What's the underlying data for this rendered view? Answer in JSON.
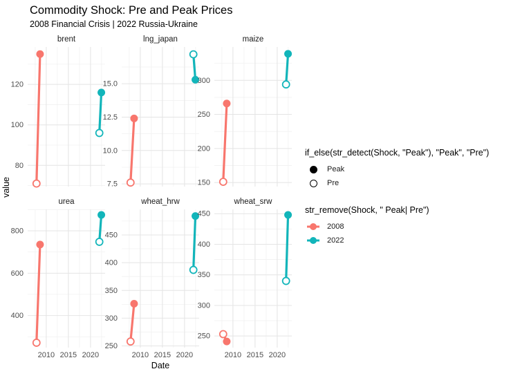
{
  "title": "Commodity Shock: Pre and Peak Prices",
  "subtitle": "2008 Financial Crisis | 2022 Russia-Ukraine",
  "colors": {
    "2008": "#f8766d",
    "2022": "#12b5ba",
    "grid_major": "#e4e4e4",
    "grid_minor": "#f1f1f1",
    "tick_text": "#4d4d4d",
    "background": "#ffffff"
  },
  "legends": [
    {
      "title": "if_else(str_detect(Shock, \"Peak\"), \"Peak\", \"Pre\")",
      "items": [
        {
          "label": "Peak",
          "glyph": "filled-circle"
        },
        {
          "label": "Pre",
          "glyph": "open-circle"
        }
      ]
    },
    {
      "title": "str_remove(Shock, \" Peak| Pre\")",
      "items": [
        {
          "label": "2008",
          "color": "#f8766d"
        },
        {
          "label": "2022",
          "color": "#12b5ba"
        }
      ]
    }
  ],
  "chart_data": {
    "type": "lollipop-segment (pointrange), faceted 2x3, free y scales",
    "title": "Commodity Shock: Pre and Peak Prices",
    "subtitle": "2008 Financial Crisis | 2022 Russia-Ukraine",
    "xlabel": "Date",
    "ylabel": "value",
    "legend_position": "right",
    "grid": true,
    "point_encoding": {
      "peak": "filled-circle",
      "pre": "open-circle"
    },
    "x_domain": [
      2005.8,
      2023.3
    ],
    "x_ticks": [
      2010,
      2015,
      2020
    ],
    "x_tick_labels": [
      "2010",
      "2015",
      "2020"
    ],
    "x_minor": [
      2007.5,
      2012.5,
      2017.5,
      2022.5
    ],
    "facets": [
      {
        "name": "brent",
        "row": 0,
        "col": 0,
        "y_ticks": {
          "values": [
            80,
            100,
            120
          ],
          "labels": [
            "80",
            "100",
            "120"
          ]
        },
        "ylim": [
          69.5,
          138.5
        ],
        "series": [
          {
            "year": "2008",
            "pre": {
              "x": 2007.8,
              "value": 71
            },
            "peak": {
              "x": 2008.6,
              "value": 135
            }
          },
          {
            "year": "2022",
            "pre": {
              "x": 2022.0,
              "value": 96
            },
            "peak": {
              "x": 2022.45,
              "value": 116
            }
          }
        ]
      },
      {
        "name": "lng_japan",
        "row": 0,
        "col": 1,
        "y_ticks": {
          "values": [
            7.5,
            10.0,
            12.5,
            15.0
          ],
          "labels": [
            "7.5",
            "10.0",
            "12.5",
            "15.0"
          ]
        },
        "ylim": [
          7.3,
          17.75
        ],
        "series": [
          {
            "year": "2008",
            "pre": {
              "x": 2007.8,
              "value": 7.6
            },
            "peak": {
              "x": 2008.6,
              "value": 12.4
            }
          },
          {
            "year": "2022",
            "pre": {
              "x": 2022.0,
              "value": 17.2
            },
            "peak": {
              "x": 2022.45,
              "value": 15.3
            }
          }
        ]
      },
      {
        "name": "maize",
        "row": 0,
        "col": 2,
        "y_ticks": {
          "values": [
            150,
            200,
            250,
            300
          ],
          "labels": [
            "150",
            "200",
            "250",
            "300"
          ]
        },
        "ylim": [
          144,
          349
        ],
        "series": [
          {
            "year": "2008",
            "pre": {
              "x": 2007.8,
              "value": 151
            },
            "peak": {
              "x": 2008.6,
              "value": 266
            }
          },
          {
            "year": "2022",
            "pre": {
              "x": 2022.0,
              "value": 294
            },
            "peak": {
              "x": 2022.45,
              "value": 339
            }
          }
        ]
      },
      {
        "name": "urea",
        "row": 1,
        "col": 0,
        "y_ticks": {
          "values": [
            400,
            600,
            800
          ],
          "labels": [
            "400",
            "600",
            "800"
          ]
        },
        "ylim": [
          249,
          901
        ],
        "series": [
          {
            "year": "2008",
            "pre": {
              "x": 2007.8,
              "value": 272
            },
            "peak": {
              "x": 2008.6,
              "value": 735
            }
          },
          {
            "year": "2022",
            "pre": {
              "x": 2022.0,
              "value": 748
            },
            "peak": {
              "x": 2022.45,
              "value": 875
            }
          }
        ]
      },
      {
        "name": "wheat_hrw",
        "row": 1,
        "col": 1,
        "y_ticks": {
          "values": [
            250,
            300,
            350,
            400,
            450
          ],
          "labels": [
            "250",
            "300",
            "350",
            "400",
            "450"
          ]
        },
        "ylim": [
          247,
          496
        ],
        "series": [
          {
            "year": "2008",
            "pre": {
              "x": 2007.8,
              "value": 258
            },
            "peak": {
              "x": 2008.6,
              "value": 326
            }
          },
          {
            "year": "2022",
            "pre": {
              "x": 2022.0,
              "value": 387
            },
            "peak": {
              "x": 2022.45,
              "value": 484
            }
          }
        ]
      },
      {
        "name": "wheat_srw",
        "row": 1,
        "col": 2,
        "y_ticks": {
          "values": [
            250,
            300,
            350,
            400,
            450
          ],
          "labels": [
            "250",
            "300",
            "350",
            "400",
            "450"
          ]
        },
        "ylim": [
          231,
          457
        ],
        "series": [
          {
            "year": "2008",
            "pre": {
              "x": 2007.8,
              "value": 253
            },
            "peak": {
              "x": 2008.6,
              "value": 241
            }
          },
          {
            "year": "2022",
            "pre": {
              "x": 2022.0,
              "value": 340
            },
            "peak": {
              "x": 2022.45,
              "value": 448
            }
          }
        ]
      }
    ]
  }
}
